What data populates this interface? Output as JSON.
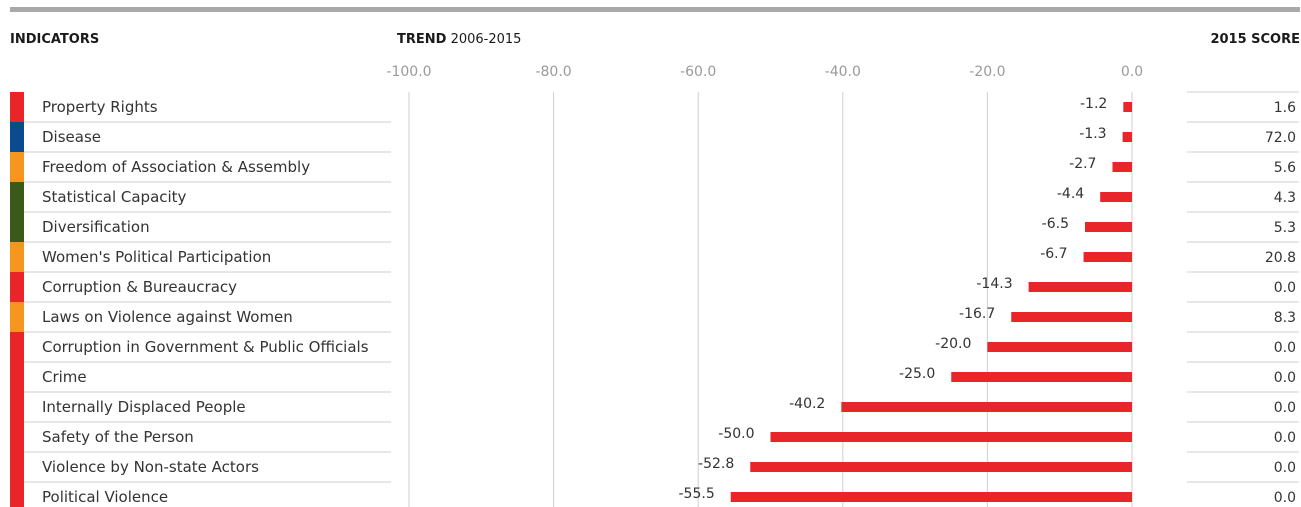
{
  "headers": {
    "indicators": "INDICATORS",
    "trend_bold": "TREND",
    "trend_range": "2006-2015",
    "score": "2015 SCORE"
  },
  "colors": {
    "bar": "#e8262a",
    "red_category": "#e8262a",
    "blue_category": "#0b4a8f",
    "orange_category": "#f6961e",
    "green_category": "#3b5a19",
    "grid": "#cfcfcf",
    "top_rule": "#a9a9a9"
  },
  "chart_data": {
    "type": "bar",
    "orientation": "horizontal",
    "x_ticks": [
      "-100.0",
      "-80.0",
      "-60.0",
      "-40.0",
      "-20.0",
      "0.0"
    ],
    "xlim": [
      -100,
      0
    ],
    "grid": true,
    "categories": [
      "Property Rights",
      "Disease",
      "Freedom of Association & Assembly",
      "Statistical Capacity",
      "Diversification",
      "Women's Political Participation",
      "Corruption & Bureaucracy",
      "Laws on Violence against Women",
      "Corruption in Government & Public Officials",
      "Crime",
      "Internally Displaced People",
      "Safety of the Person",
      "Violence by Non-state Actors",
      "Political Violence"
    ],
    "category_colors": [
      "red",
      "blue",
      "orange",
      "green",
      "green",
      "orange",
      "red",
      "orange",
      "red",
      "red",
      "red",
      "red",
      "red",
      "red"
    ],
    "values": [
      -1.2,
      -1.3,
      -2.7,
      -4.4,
      -6.5,
      -6.7,
      -14.3,
      -16.7,
      -20.0,
      -25.0,
      -40.2,
      -50.0,
      -52.8,
      -55.5
    ],
    "value_labels": [
      "-1.2",
      "-1.3",
      "-2.7",
      "-4.4",
      "-6.5",
      "-6.7",
      "-14.3",
      "-16.7",
      "-20.0",
      "-25.0",
      "-40.2",
      "-50.0",
      "-52.8",
      "-55.5"
    ],
    "scores_2015": [
      "1.6",
      "72.0",
      "5.6",
      "4.3",
      "5.3",
      "20.8",
      "0.0",
      "8.3",
      "0.0",
      "0.0",
      "0.0",
      "0.0",
      "0.0",
      "0.0"
    ]
  }
}
